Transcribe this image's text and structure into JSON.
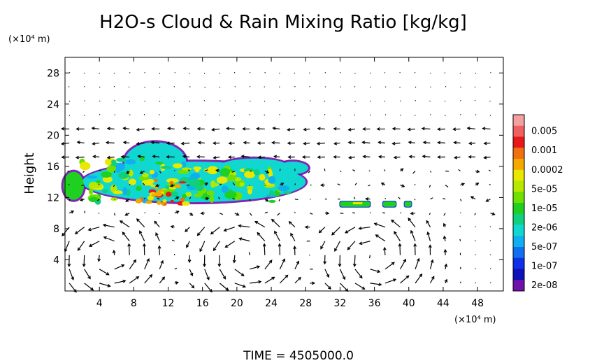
{
  "chart_data": {
    "type": "heatmap",
    "title": "H2O-s Cloud & Rain Mixing Ratio [kg/kg]",
    "ylabel": "Height",
    "y_unit": "(×10⁴ m)",
    "x_unit": "(×10⁴ m)",
    "footer": "TIME  =  4505000.0",
    "xlim": [
      0,
      51
    ],
    "ylim": [
      0,
      30
    ],
    "x_ticks": [
      "4",
      "8",
      "12",
      "16",
      "20",
      "24",
      "28",
      "32",
      "36",
      "40",
      "44",
      "48"
    ],
    "y_ticks": [
      "4",
      "8",
      "12",
      "16",
      "20",
      "24",
      "28"
    ],
    "colorbar": {
      "labels": [
        "0.005",
        "0.001",
        "0.0002",
        "5e-05",
        "1e-05",
        "2e-06",
        "5e-07",
        "1e-07",
        "2e-08"
      ],
      "colors": [
        "#f4a0a0",
        "#f06060",
        "#e81818",
        "#f07010",
        "#f4a800",
        "#e8e800",
        "#b8e800",
        "#70e000",
        "#20d020",
        "#10d080",
        "#10d8d0",
        "#10b0f0",
        "#1070f0",
        "#1030e8",
        "#1010b8",
        "#7010a8"
      ]
    },
    "cloud_regions": [
      {
        "x_range": [
          9,
          14
        ],
        "y_range": [
          11,
          19
        ],
        "max_value": "0.0002"
      },
      {
        "x_range": [
          0,
          28
        ],
        "y_range": [
          11,
          18
        ],
        "max_value": "5e-05"
      },
      {
        "x_range": [
          32,
          36
        ],
        "y_range": [
          10.8,
          11.6
        ],
        "max_value": "5e-05"
      },
      {
        "x_range": [
          37,
          40
        ],
        "y_range": [
          10.8,
          11.5
        ],
        "max_value": "1e-05"
      }
    ],
    "wind_field": {
      "grid": "quiver",
      "circulation_centers_x": [
        5,
        21,
        36
      ]
    }
  }
}
